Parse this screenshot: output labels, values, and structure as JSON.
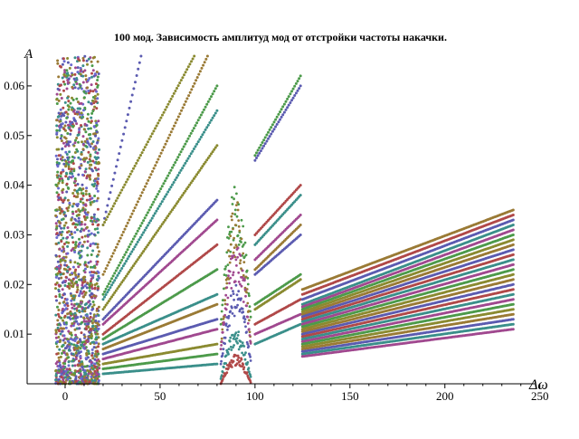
{
  "chart_data": {
    "type": "scatter",
    "title": "100 мод. Зависимость амплитуд мод от отстройки частоты накачки.",
    "xlabel": "Δω",
    "ylabel": "A",
    "xlim": [
      -20,
      253
    ],
    "ylim": [
      0,
      0.066
    ],
    "x_ticks": [
      {
        "value": 0,
        "label": "0"
      },
      {
        "value": 50,
        "label": "50"
      },
      {
        "value": 100,
        "label": "100"
      },
      {
        "value": 150,
        "label": "150"
      },
      {
        "value": 200,
        "label": "200"
      },
      {
        "value": 250,
        "label": "250"
      }
    ],
    "y_ticks": [
      {
        "value": 0.01,
        "label": "0.01"
      },
      {
        "value": 0.02,
        "label": "0.02"
      },
      {
        "value": 0.03,
        "label": "0.03"
      },
      {
        "value": 0.04,
        "label": "0.04"
      },
      {
        "value": 0.05,
        "label": "0.05"
      },
      {
        "value": 0.06,
        "label": "0.06"
      }
    ],
    "grid": false,
    "colors": [
      "#5b5bb0",
      "#9a7a35",
      "#4c9a4a",
      "#a0488f",
      "#3a8f8a",
      "#8a8a30",
      "#b04848",
      "#6a6ad0"
    ],
    "series": [
      {
        "segment": "chaotic",
        "x_range": [
          -5,
          18
        ],
        "y_range": [
          0,
          0.066
        ],
        "description_values": "dense scatter"
      },
      {
        "x": [
          20,
          40
        ],
        "y": [
          0.032,
          0.066
        ],
        "color": "#5b5bb0"
      },
      {
        "x": [
          20,
          68
        ],
        "y": [
          0.032,
          0.066
        ],
        "color": "#8a8a30"
      },
      {
        "x": [
          20,
          75
        ],
        "y": [
          0.022,
          0.066
        ],
        "color": "#9a7a35"
      },
      {
        "x": [
          20,
          80
        ],
        "y": [
          0.018,
          0.06
        ],
        "color": "#4c9a4a"
      },
      {
        "x": [
          20,
          80
        ],
        "y": [
          0.017,
          0.055
        ],
        "color": "#3a8f8a"
      },
      {
        "x": [
          20,
          80
        ],
        "y": [
          0.015,
          0.048
        ],
        "color": "#8a8a30"
      },
      {
        "x": [
          20,
          80
        ],
        "y": [
          0.013,
          0.037
        ],
        "color": "#5b5bb0"
      },
      {
        "x": [
          20,
          80
        ],
        "y": [
          0.012,
          0.033
        ],
        "color": "#a0488f"
      },
      {
        "x": [
          20,
          80
        ],
        "y": [
          0.01,
          0.028
        ],
        "color": "#b04848"
      },
      {
        "x": [
          20,
          80
        ],
        "y": [
          0.009,
          0.023
        ],
        "color": "#4c9a4a"
      },
      {
        "x": [
          20,
          80
        ],
        "y": [
          0.008,
          0.018
        ],
        "color": "#3a8f8a"
      },
      {
        "x": [
          20,
          80
        ],
        "y": [
          0.007,
          0.016
        ],
        "color": "#9a7a35"
      },
      {
        "x": [
          20,
          80
        ],
        "y": [
          0.006,
          0.013
        ],
        "color": "#5b5bb0"
      },
      {
        "x": [
          20,
          80
        ],
        "y": [
          0.005,
          0.011
        ],
        "color": "#a0488f"
      },
      {
        "x": [
          20,
          80
        ],
        "y": [
          0.004,
          0.008
        ],
        "color": "#8a8a30"
      },
      {
        "x": [
          20,
          80
        ],
        "y": [
          0.003,
          0.006
        ],
        "color": "#4c9a4a"
      },
      {
        "x": [
          20,
          80
        ],
        "y": [
          0.002,
          0.004
        ],
        "color": "#3a8f8a"
      },
      {
        "x": [
          100,
          124
        ],
        "y": [
          0.046,
          0.062
        ],
        "color": "#4c9a4a"
      },
      {
        "x": [
          100,
          124
        ],
        "y": [
          0.045,
          0.06
        ],
        "color": "#5b5bb0"
      },
      {
        "x": [
          100,
          124
        ],
        "y": [
          0.03,
          0.04
        ],
        "color": "#b04848"
      },
      {
        "x": [
          100,
          124
        ],
        "y": [
          0.028,
          0.038
        ],
        "color": "#3a8f8a"
      },
      {
        "x": [
          100,
          124
        ],
        "y": [
          0.025,
          0.034
        ],
        "color": "#a0488f"
      },
      {
        "x": [
          100,
          124
        ],
        "y": [
          0.023,
          0.032
        ],
        "color": "#9a7a35"
      },
      {
        "x": [
          100,
          124
        ],
        "y": [
          0.022,
          0.03
        ],
        "color": "#5b5bb0"
      },
      {
        "x": [
          100,
          124
        ],
        "y": [
          0.016,
          0.022
        ],
        "color": "#4c9a4a"
      },
      {
        "x": [
          100,
          124
        ],
        "y": [
          0.015,
          0.021
        ],
        "color": "#8a8a30"
      },
      {
        "x": [
          100,
          124
        ],
        "y": [
          0.012,
          0.017
        ],
        "color": "#b04848"
      },
      {
        "x": [
          100,
          124
        ],
        "y": [
          0.01,
          0.014
        ],
        "color": "#a0488f"
      },
      {
        "x": [
          100,
          124
        ],
        "y": [
          0.008,
          0.012
        ],
        "color": "#3a8f8a"
      },
      {
        "x": [
          125,
          236
        ],
        "y": [
          0.019,
          0.035
        ],
        "color": "#9a7a35"
      },
      {
        "x": [
          125,
          236
        ],
        "y": [
          0.018,
          0.034
        ],
        "color": "#b04848"
      },
      {
        "x": [
          125,
          236
        ],
        "y": [
          0.017,
          0.033
        ],
        "color": "#5b5bb0"
      },
      {
        "x": [
          125,
          236
        ],
        "y": [
          0.016,
          0.032
        ],
        "color": "#3a8f8a"
      },
      {
        "x": [
          125,
          236
        ],
        "y": [
          0.0155,
          0.031
        ],
        "color": "#a0488f"
      },
      {
        "x": [
          125,
          236
        ],
        "y": [
          0.015,
          0.03
        ],
        "color": "#4c9a4a"
      },
      {
        "x": [
          125,
          236
        ],
        "y": [
          0.0145,
          0.029
        ],
        "color": "#8a8a30"
      },
      {
        "x": [
          125,
          236
        ],
        "y": [
          0.014,
          0.028
        ],
        "color": "#9a7a35"
      },
      {
        "x": [
          125,
          236
        ],
        "y": [
          0.0135,
          0.027
        ],
        "color": "#5b5bb0"
      },
      {
        "x": [
          125,
          236
        ],
        "y": [
          0.013,
          0.026
        ],
        "color": "#b04848"
      },
      {
        "x": [
          125,
          236
        ],
        "y": [
          0.0125,
          0.025
        ],
        "color": "#3a8f8a"
      },
      {
        "x": [
          125,
          236
        ],
        "y": [
          0.012,
          0.024
        ],
        "color": "#a0488f"
      },
      {
        "x": [
          125,
          236
        ],
        "y": [
          0.0115,
          0.023
        ],
        "color": "#4c9a4a"
      },
      {
        "x": [
          125,
          236
        ],
        "y": [
          0.011,
          0.022
        ],
        "color": "#8a8a30"
      },
      {
        "x": [
          125,
          236
        ],
        "y": [
          0.0105,
          0.021
        ],
        "color": "#9a7a35"
      },
      {
        "x": [
          125,
          236
        ],
        "y": [
          0.01,
          0.02
        ],
        "color": "#5b5bb0"
      },
      {
        "x": [
          125,
          236
        ],
        "y": [
          0.0095,
          0.019
        ],
        "color": "#b04848"
      },
      {
        "x": [
          125,
          236
        ],
        "y": [
          0.009,
          0.018
        ],
        "color": "#3a8f8a"
      },
      {
        "x": [
          125,
          236
        ],
        "y": [
          0.0085,
          0.017
        ],
        "color": "#a0488f"
      },
      {
        "x": [
          125,
          236
        ],
        "y": [
          0.008,
          0.016
        ],
        "color": "#4c9a4a"
      },
      {
        "x": [
          125,
          236
        ],
        "y": [
          0.0075,
          0.015
        ],
        "color": "#8a8a30"
      },
      {
        "x": [
          125,
          236
        ],
        "y": [
          0.007,
          0.014
        ],
        "color": "#9a7a35"
      },
      {
        "x": [
          125,
          236
        ],
        "y": [
          0.0065,
          0.013
        ],
        "color": "#5b5bb0"
      },
      {
        "x": [
          125,
          236
        ],
        "y": [
          0.006,
          0.012
        ],
        "color": "#3a8f8a"
      },
      {
        "x": [
          125,
          236
        ],
        "y": [
          0.0055,
          0.011
        ],
        "color": "#a0488f"
      }
    ]
  }
}
